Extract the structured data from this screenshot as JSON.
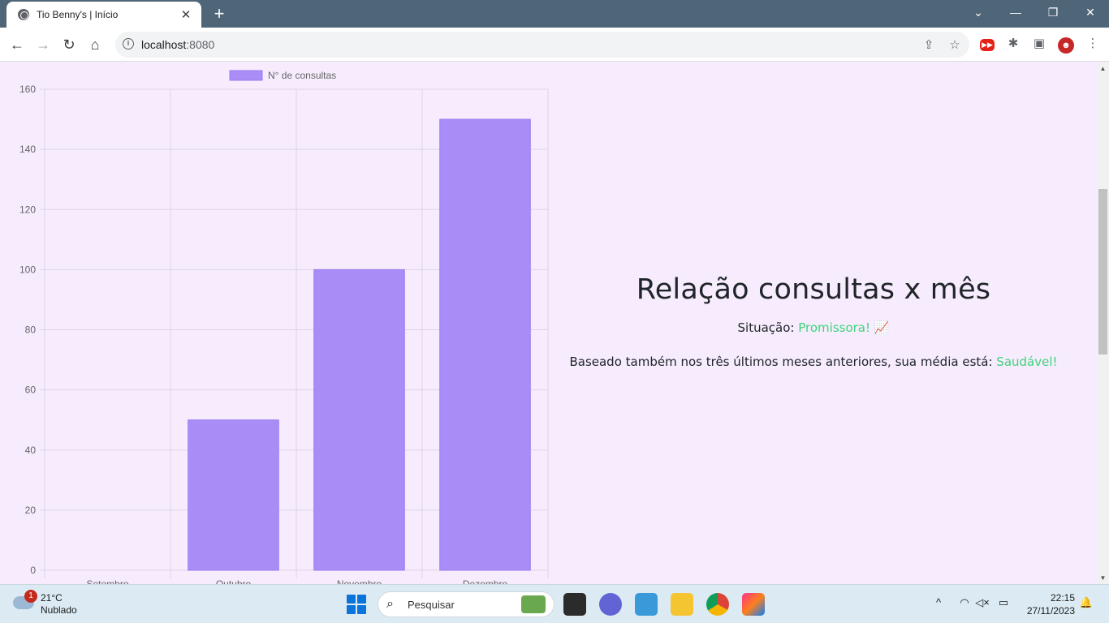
{
  "browser": {
    "tab_title": "Tio Benny's | Início",
    "tab_close": "✕",
    "new_tab": "+",
    "url_host": "localhost",
    "url_port": ":8080",
    "win_minimize": "—",
    "win_restore": "❐",
    "win_close": "✕",
    "tab_search": "⌄"
  },
  "chart_data": {
    "type": "bar",
    "categories": [
      "Setembro",
      "Outubro",
      "Novembro",
      "Dezembro"
    ],
    "series": [
      {
        "name": "N° de consultas",
        "values": [
          0,
          50,
          100,
          150
        ]
      }
    ],
    "ylim": [
      0,
      160
    ],
    "yticks": [
      0,
      20,
      40,
      60,
      80,
      100,
      120,
      140,
      160
    ],
    "legend": "top",
    "grid": true,
    "bar_color": "#aa8cf7",
    "bar_border": "#9a7ef0",
    "grid_color": "#ddd4e6"
  },
  "panel": {
    "title": "Relação consultas x mês",
    "status_label": "Situação:",
    "status_value": "Promissora!",
    "status_emoji": "📈",
    "average_text": "Baseado também nos três últimos meses anteriores, sua média está:",
    "average_value": "Saudável!",
    "accent_color": "#3ed47a"
  },
  "taskbar": {
    "weather_temp": "21°C",
    "weather_cond": "Nublado",
    "weather_badge": "1",
    "search_placeholder": "Pesquisar",
    "time": "22:15",
    "date": "27/11/2023"
  }
}
